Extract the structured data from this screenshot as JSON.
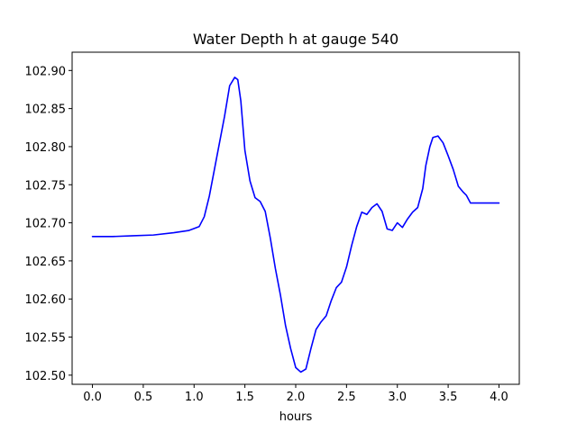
{
  "chart_data": {
    "type": "line",
    "title": "Water Depth h at gauge 540",
    "xlabel": "hours",
    "ylabel": "",
    "xlim": [
      -0.2,
      4.2
    ],
    "ylim": [
      102.488,
      102.924
    ],
    "xticks": [
      0.0,
      0.5,
      1.0,
      1.5,
      2.0,
      2.5,
      3.0,
      3.5,
      4.0
    ],
    "xtick_labels": [
      "0.0",
      "0.5",
      "1.0",
      "1.5",
      "2.0",
      "2.5",
      "3.0",
      "3.5",
      "4.0"
    ],
    "yticks": [
      102.5,
      102.55,
      102.6,
      102.65,
      102.7,
      102.75,
      102.8,
      102.85,
      102.9
    ],
    "ytick_labels": [
      "102.50",
      "102.55",
      "102.60",
      "102.65",
      "102.70",
      "102.75",
      "102.80",
      "102.85",
      "102.90"
    ],
    "grid": false,
    "series": [
      {
        "color": "#0000ff",
        "x": [
          0.0,
          0.2,
          0.4,
          0.6,
          0.8,
          0.95,
          1.05,
          1.1,
          1.15,
          1.2,
          1.25,
          1.3,
          1.35,
          1.4,
          1.43,
          1.46,
          1.5,
          1.55,
          1.6,
          1.65,
          1.7,
          1.75,
          1.8,
          1.85,
          1.9,
          1.95,
          2.0,
          2.05,
          2.1,
          2.15,
          2.2,
          2.25,
          2.3,
          2.35,
          2.4,
          2.45,
          2.5,
          2.55,
          2.6,
          2.65,
          2.7,
          2.75,
          2.8,
          2.85,
          2.9,
          2.95,
          3.0,
          3.05,
          3.1,
          3.15,
          3.2,
          3.25,
          3.28,
          3.32,
          3.35,
          3.4,
          3.45,
          3.5,
          3.55,
          3.6,
          3.65,
          3.68,
          3.72,
          3.8,
          3.85,
          3.9,
          3.95,
          4.0
        ],
        "y": [
          102.682,
          102.682,
          102.683,
          102.684,
          102.687,
          102.69,
          102.695,
          102.708,
          102.735,
          102.77,
          102.805,
          102.84,
          102.88,
          102.891,
          102.888,
          102.86,
          102.795,
          102.755,
          102.733,
          102.728,
          102.715,
          102.68,
          102.64,
          102.605,
          102.565,
          102.535,
          102.51,
          102.504,
          102.508,
          102.535,
          102.56,
          102.57,
          102.578,
          102.598,
          102.615,
          102.622,
          102.642,
          102.67,
          102.695,
          102.714,
          102.711,
          102.72,
          102.725,
          102.715,
          102.692,
          102.69,
          102.7,
          102.694,
          102.705,
          102.714,
          102.72,
          102.745,
          102.775,
          102.8,
          102.812,
          102.814,
          102.805,
          102.788,
          102.77,
          102.748,
          102.74,
          102.736,
          102.726,
          102.726,
          102.726,
          102.726,
          102.726,
          102.726
        ]
      }
    ]
  }
}
